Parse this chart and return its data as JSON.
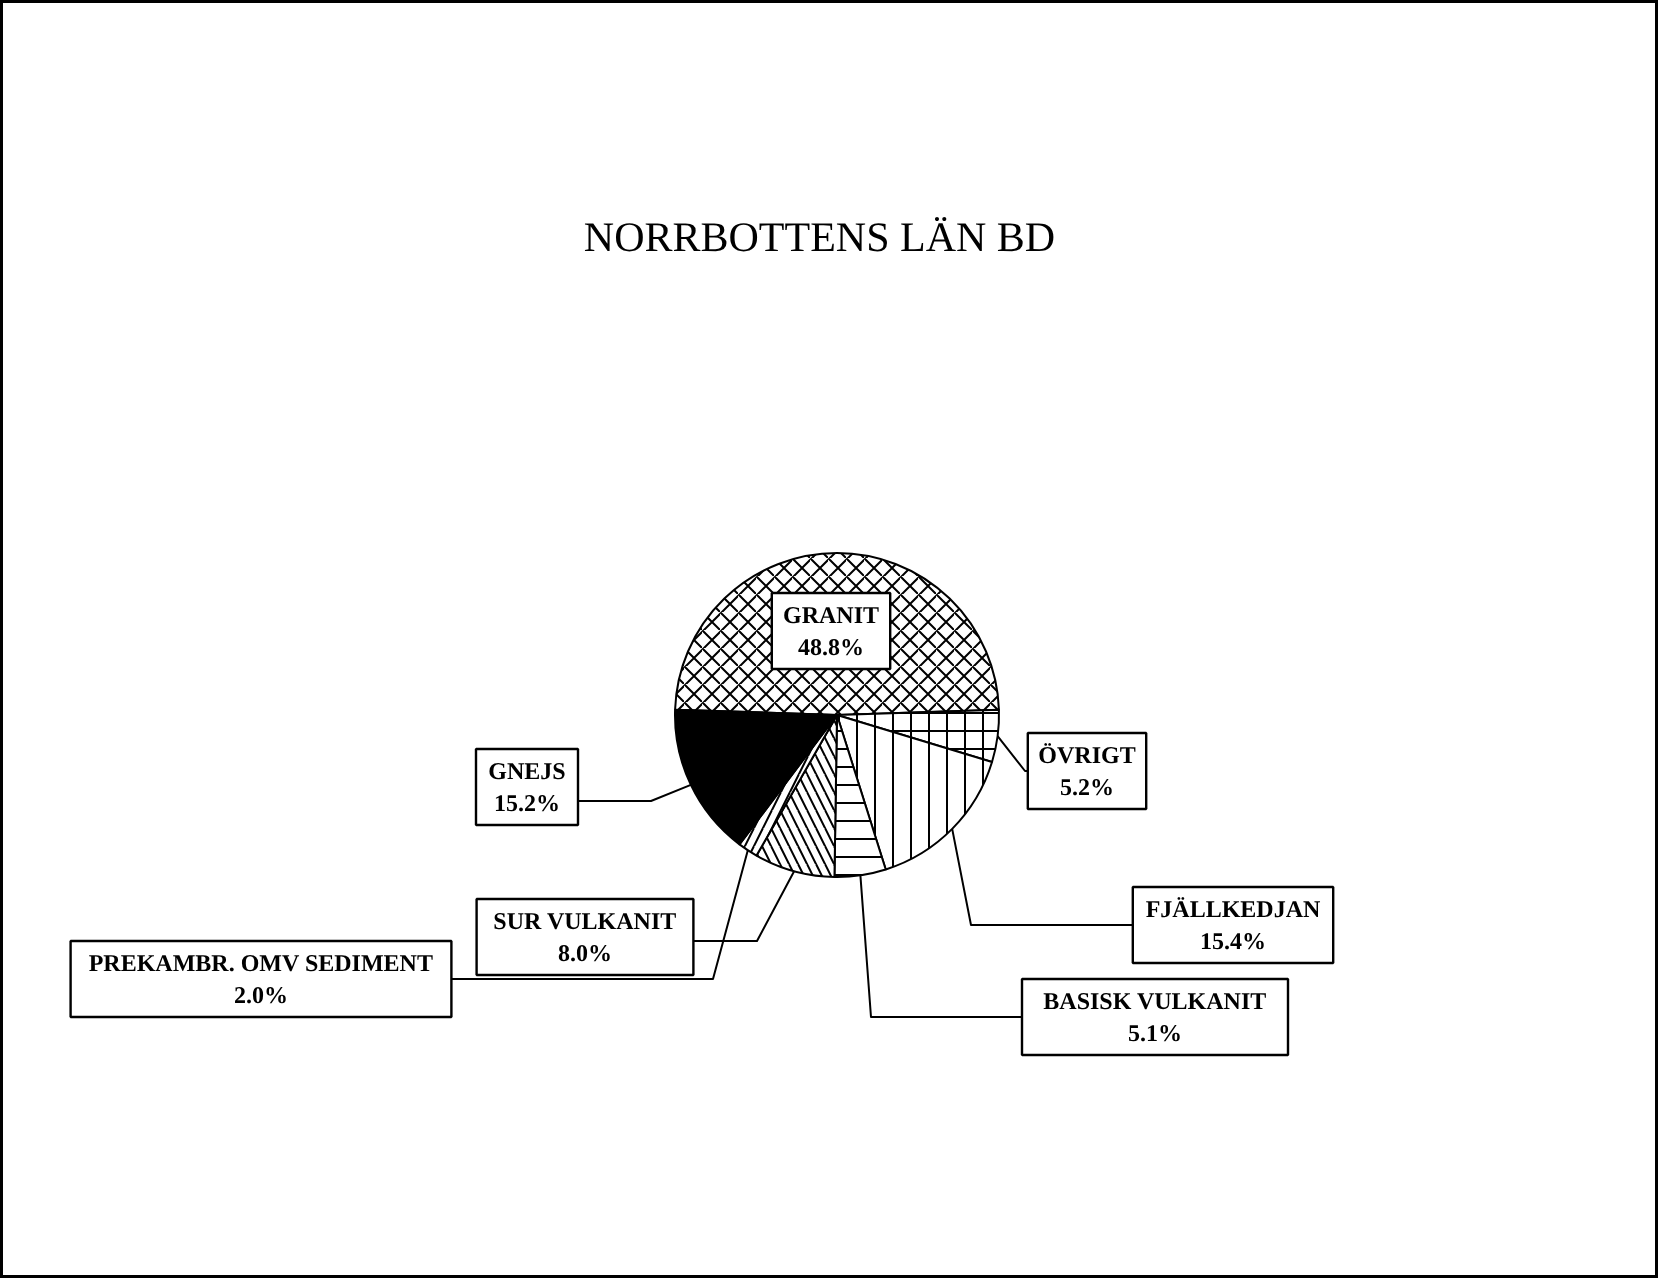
{
  "chart_data": {
    "type": "pie",
    "title": "NORRBOTTENS LÄN   BD",
    "categories": [
      "GRANIT",
      "ÖVRIGT",
      "FJÄLLKEDJAN",
      "BASISK VULKANIT",
      "SUR VULKANIT",
      "PREKAMBR. OMV SEDIMENT",
      "GNEJS"
    ],
    "values": [
      48.8,
      5.2,
      15.4,
      5.1,
      8.0,
      2.0,
      15.2
    ],
    "value_labels": [
      "48.8%",
      "5.2%",
      "15.4%",
      "5.1%",
      "8.0%",
      "2.0%",
      "15.2%"
    ],
    "colors": [
      "#ffffff",
      "#ffffff",
      "#ffffff",
      "#ffffff",
      "#ffffff",
      "#ffffff",
      "#000000"
    ],
    "data_labels": true
  }
}
